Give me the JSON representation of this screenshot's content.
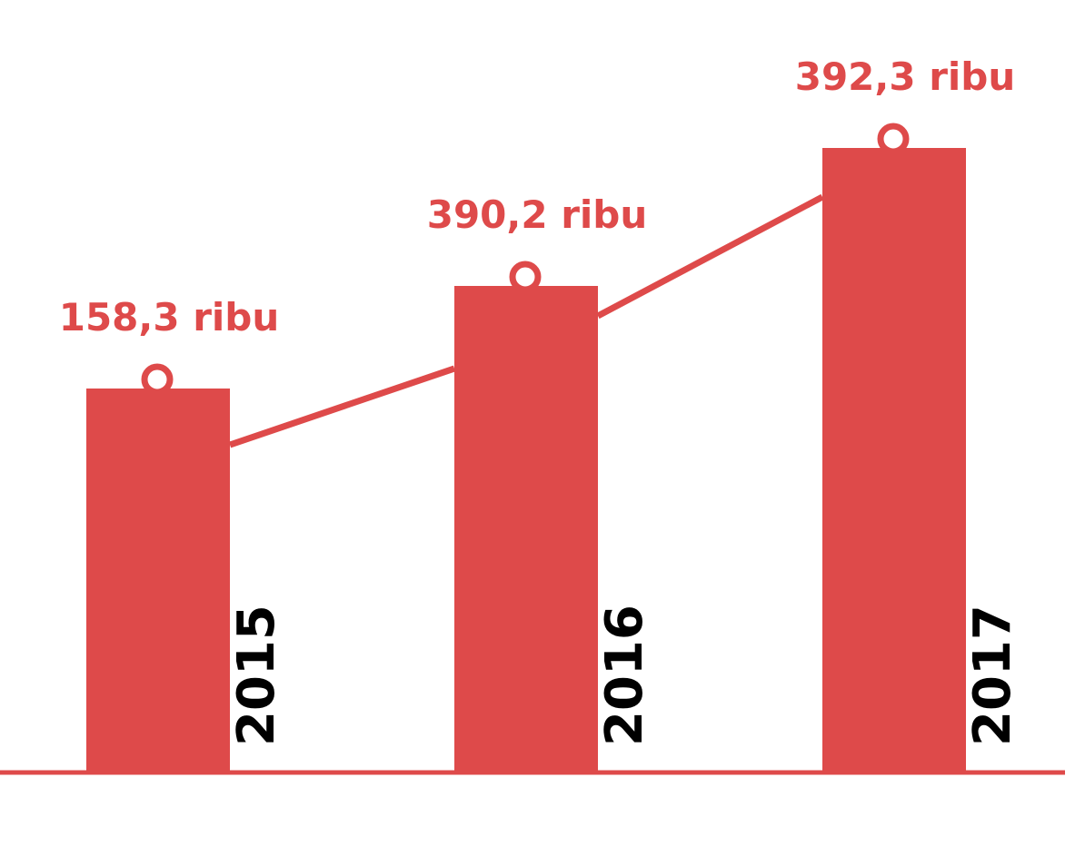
{
  "chart_data": {
    "type": "bar",
    "categories": [
      "2015",
      "2016",
      "2017"
    ],
    "values": [
      158.3,
      390.2,
      392.3
    ],
    "value_labels": [
      "158,3 ribu",
      "390,2 ribu",
      "392,3 ribu"
    ],
    "overlay_line": true,
    "title": "",
    "xlabel": "",
    "ylabel": "",
    "grid": false,
    "legend": "none"
  },
  "colors": {
    "accent": "#DE4A4A",
    "year_text": "#000000",
    "background": "#FFFFFF"
  }
}
